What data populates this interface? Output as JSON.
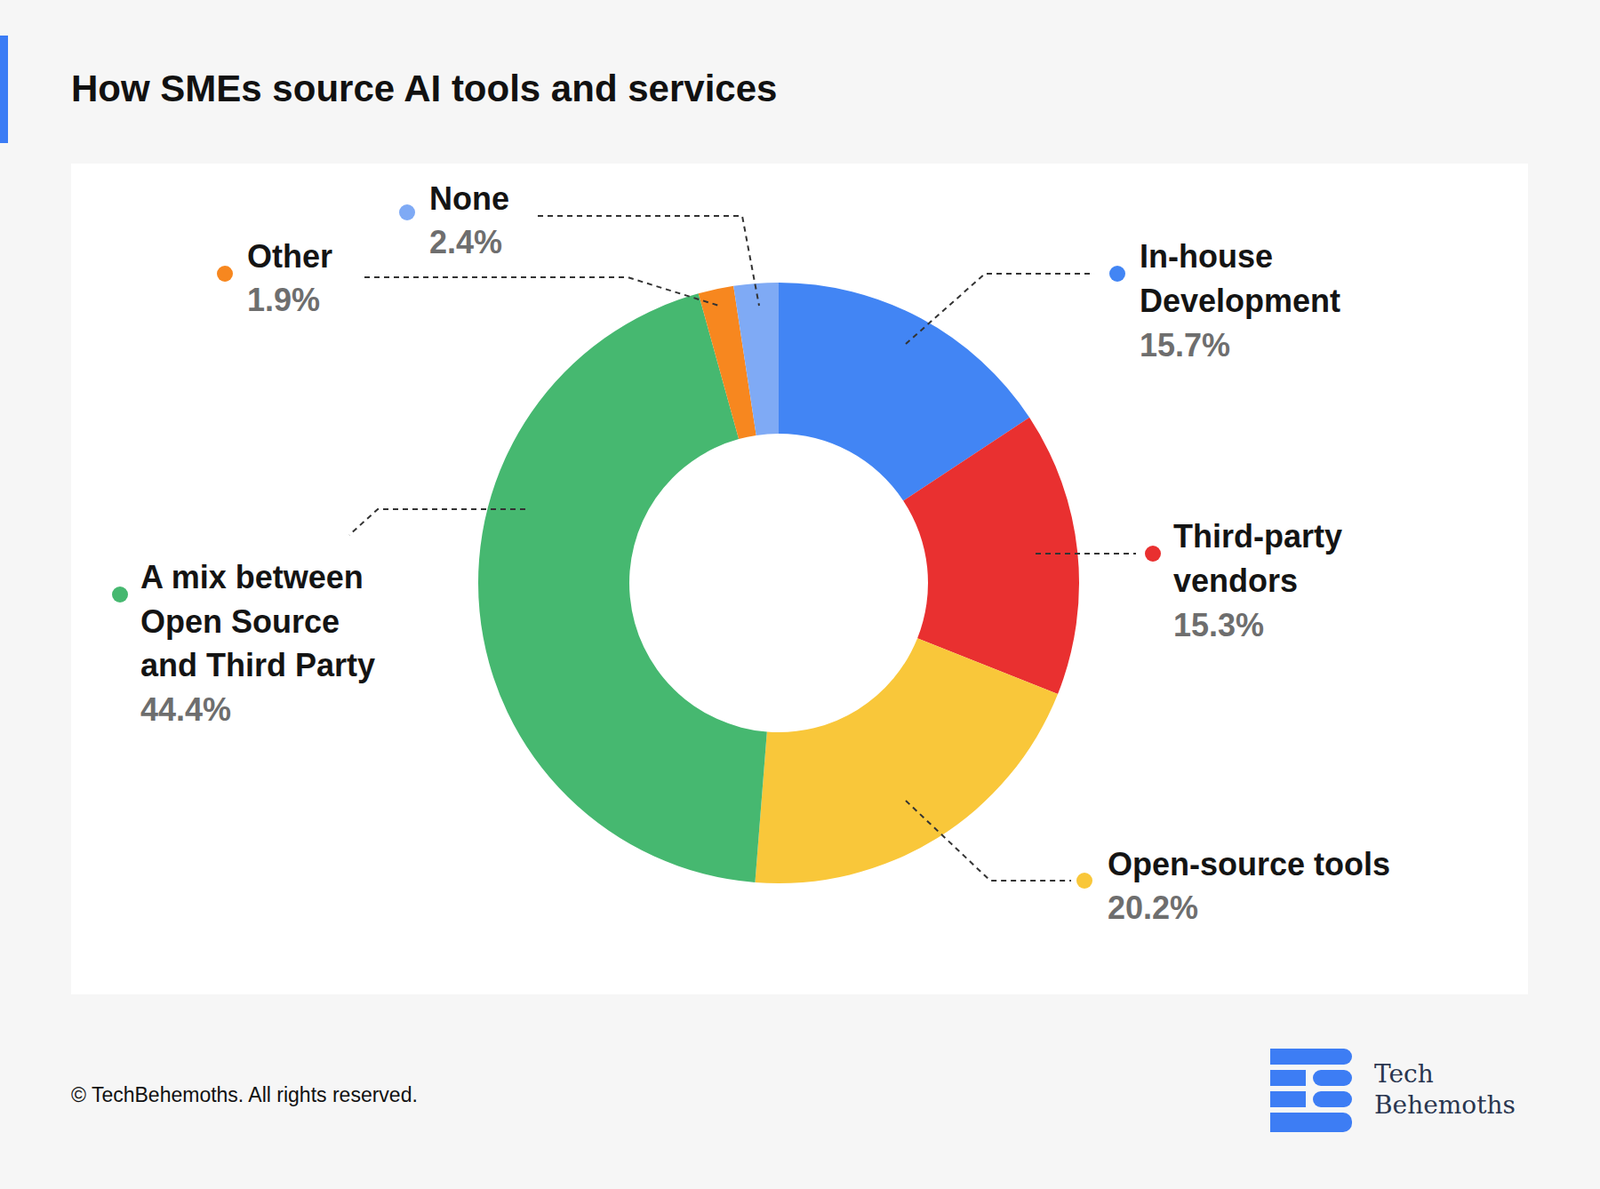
{
  "chart_data": {
    "type": "donut",
    "title": "How SMEs source AI tools and services",
    "categories": [
      "In-house Development",
      "Third-party vendors",
      "Open-source tools",
      "A mix between Open Source and Third Party",
      "Other",
      "None"
    ],
    "values": [
      15.7,
      15.3,
      20.2,
      44.4,
      1.9,
      2.4
    ],
    "value_labels": [
      "15.7%",
      "15.3%",
      "20.2%",
      "44.4%",
      "1.9%",
      "2.4%"
    ],
    "colors": [
      "#4285f4",
      "#e93030",
      "#f9c73a",
      "#46b870",
      "#f7871f",
      "#7faaf5"
    ],
    "data_labels": true,
    "annotations": [
      "© TechBehemoths. All rights reserved.",
      "Tech",
      "Behemoths"
    ]
  }
}
